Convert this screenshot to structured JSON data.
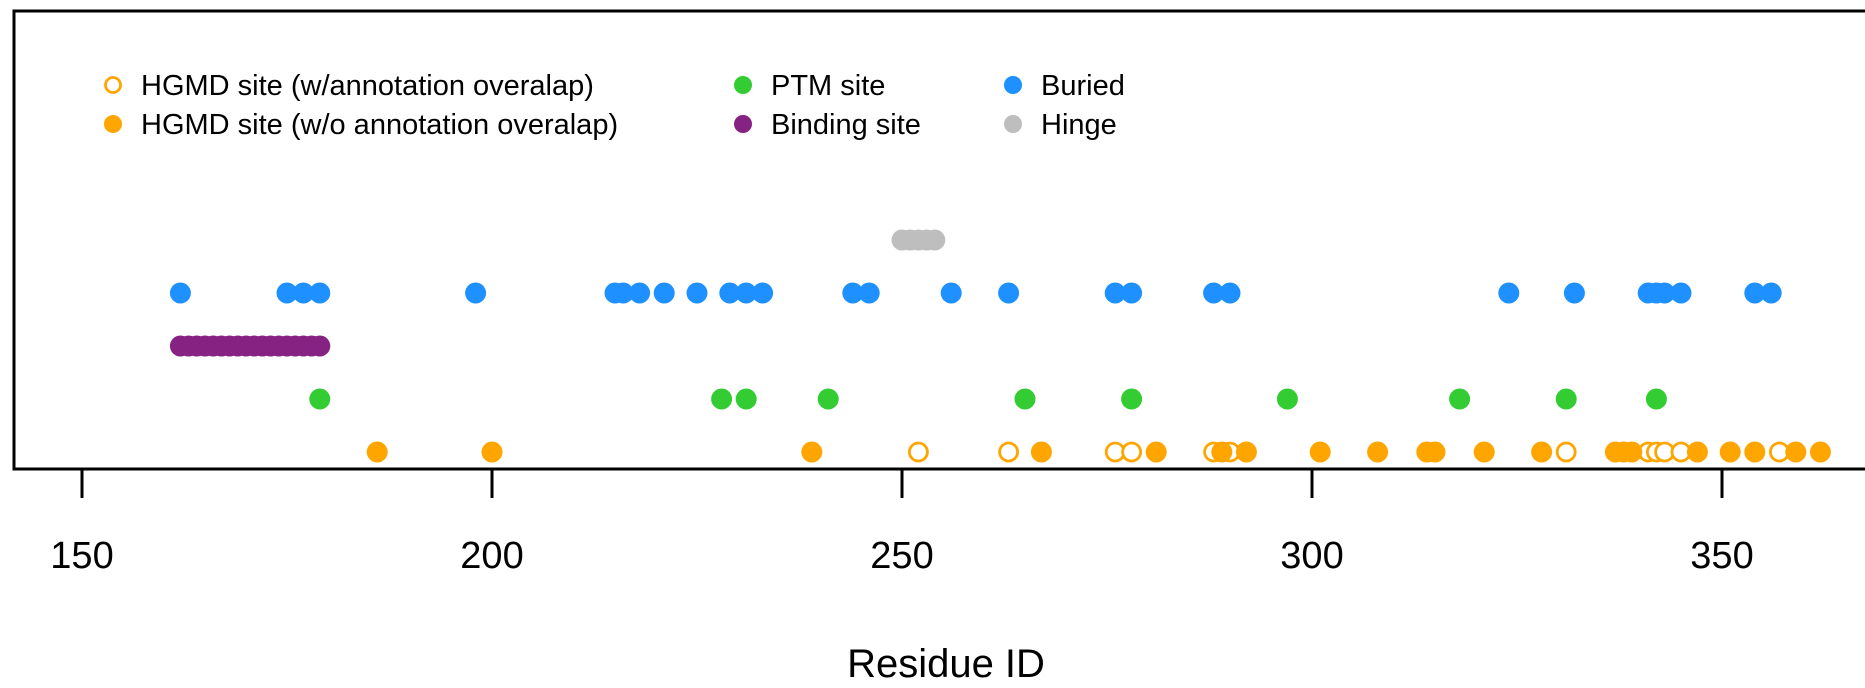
{
  "colors": {
    "hgmd": "#FFA500",
    "ptm": "#33CC33",
    "binding": "#862382",
    "buried": "#1E90FF",
    "hinge": "#BEBEBE"
  },
  "legend": [
    {
      "label": "HGMD site (w/annotation overalap)",
      "color": "#FFA500",
      "filled": false
    },
    {
      "label": "HGMD site (w/o annotation overalap)",
      "color": "#FFA500",
      "filled": true
    },
    {
      "label": "PTM site",
      "color": "#33CC33",
      "filled": true
    },
    {
      "label": "Binding site",
      "color": "#862382",
      "filled": true
    },
    {
      "label": "Buried",
      "color": "#1E90FF",
      "filled": true
    },
    {
      "label": "Hinge",
      "color": "#BEBEBE",
      "filled": true
    }
  ],
  "chart_data": {
    "type": "scatter",
    "title": "",
    "xlabel": "Residue ID",
    "ylabel": "",
    "xlim": [
      150,
      363
    ],
    "x_ticks": [
      "150",
      "200",
      "250",
      "300",
      "350"
    ],
    "legend_position": "top-left",
    "grid": false,
    "series": [
      {
        "name": "HGMD site (w/annotation overalap)",
        "track": 1,
        "filled": false,
        "color": "#FFA500",
        "x": [
          252,
          263,
          276,
          278,
          288,
          290,
          331,
          341,
          342,
          343,
          345,
          357
        ]
      },
      {
        "name": "HGMD site (w/o annotation overalap)",
        "track": 1,
        "filled": true,
        "color": "#FFA500",
        "x": [
          186,
          200,
          239,
          267,
          281,
          289,
          292,
          301,
          308,
          314,
          315,
          321,
          328,
          337,
          338,
          339,
          347,
          351,
          354,
          359,
          362
        ]
      },
      {
        "name": "PTM site",
        "track": 2,
        "filled": true,
        "color": "#33CC33",
        "x": [
          179,
          228,
          231,
          241,
          265,
          278,
          297,
          318,
          331,
          342
        ]
      },
      {
        "name": "Binding site",
        "track": 3,
        "filled": true,
        "color": "#862382",
        "x": [
          162,
          163,
          164,
          165,
          166,
          167,
          168,
          169,
          170,
          171,
          172,
          173,
          174,
          175,
          176,
          177,
          178,
          179
        ]
      },
      {
        "name": "Buried",
        "track": 4,
        "filled": true,
        "color": "#1E90FF",
        "x": [
          162,
          175,
          177,
          179,
          198,
          215,
          216,
          218,
          221,
          225,
          229,
          231,
          233,
          244,
          246,
          256,
          263,
          276,
          278,
          288,
          290,
          324,
          332,
          341,
          342,
          343,
          345,
          354,
          356
        ]
      },
      {
        "name": "Hinge",
        "track": 5,
        "filled": true,
        "color": "#BEBEBE",
        "x": [
          250,
          251,
          252,
          253,
          254
        ]
      }
    ]
  }
}
